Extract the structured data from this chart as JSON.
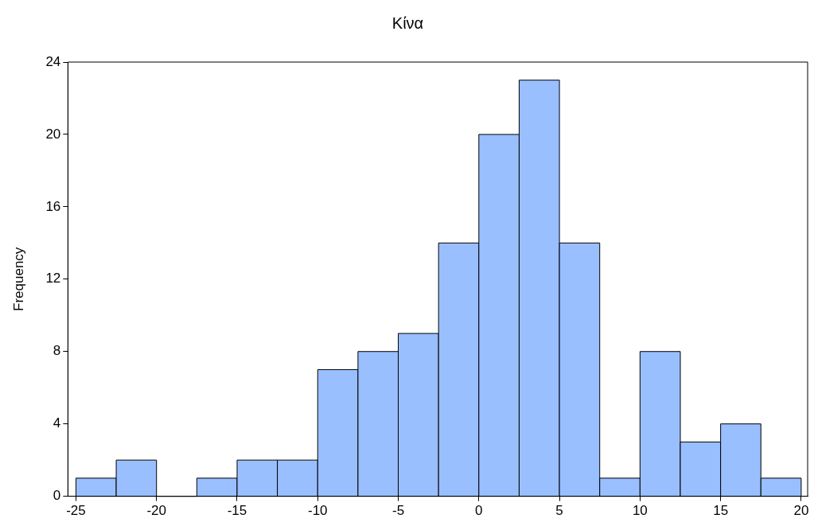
{
  "chart_data": {
    "type": "histogram",
    "title": "Κίνα",
    "ylabel": "Frequency",
    "bins": [
      -25,
      -22.5,
      -20,
      -17.5,
      -15,
      -12.5,
      -10,
      -7.5,
      -5,
      -2.5,
      0,
      2.5,
      5,
      7.5,
      10,
      12.5,
      15,
      17.5,
      20
    ],
    "values": [
      1,
      2,
      0,
      1,
      2,
      2,
      7,
      8,
      9,
      14,
      20,
      23,
      14,
      1,
      8,
      3,
      4,
      1
    ],
    "color": "#99bfff",
    "xlim": [
      -25.5,
      20.4
    ],
    "xticks": [
      -25,
      -20,
      -15,
      -10,
      -5,
      0,
      5,
      10,
      15,
      20
    ],
    "ylim": [
      0,
      24
    ],
    "yticks": [
      0,
      4,
      8,
      12,
      16,
      20,
      24
    ]
  }
}
